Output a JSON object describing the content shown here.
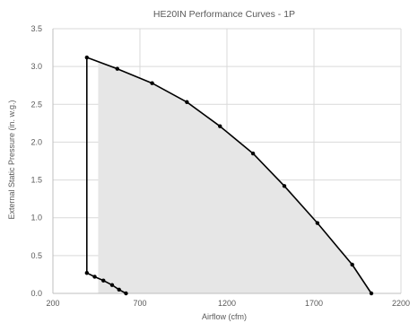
{
  "chart_data": {
    "type": "line",
    "title": "HE20IN Performance Curves - 1P",
    "xlabel": "Airflow (cfm)",
    "ylabel": "External Static Pressure (in. w.g.)",
    "xlim": [
      200,
      2200
    ],
    "ylim": [
      0,
      3.5
    ],
    "xticks": [
      200,
      700,
      1200,
      1700,
      2200
    ],
    "xtick_labels": [
      "200",
      "700",
      "1200",
      "1700",
      "2200"
    ],
    "yticks": [
      0,
      0.5,
      1.0,
      1.5,
      2.0,
      2.5,
      3.0,
      3.5
    ],
    "ytick_labels": [
      "0.0",
      "0.5",
      "1.0",
      "1.5",
      "2.0",
      "2.5",
      "3.0",
      "3.5"
    ],
    "grid": true,
    "legend": "none",
    "shaded_region": {
      "description_none": "",
      "polygon": [
        [
          460,
          0
        ],
        [
          460,
          3.05
        ],
        [
          570,
          2.97
        ],
        [
          770,
          2.78
        ],
        [
          970,
          2.53
        ],
        [
          1160,
          2.21
        ],
        [
          1350,
          1.85
        ],
        [
          1530,
          1.42
        ],
        [
          1720,
          0.93
        ],
        [
          1920,
          0.38
        ],
        [
          2030,
          0.0
        ]
      ],
      "color": "#e6e6e6"
    },
    "series": [
      {
        "name": "",
        "color": "#000000",
        "points": [
          [
            395,
            3.12
          ],
          [
            570,
            2.97
          ],
          [
            770,
            2.78
          ],
          [
            970,
            2.53
          ],
          [
            1160,
            2.21
          ],
          [
            1350,
            1.85
          ],
          [
            1530,
            1.42
          ],
          [
            1720,
            0.93
          ],
          [
            1920,
            0.38
          ],
          [
            2030,
            0.0
          ]
        ]
      },
      {
        "name": "",
        "color": "#000000",
        "points": [
          [
            395,
            0.27
          ],
          [
            440,
            0.22
          ],
          [
            490,
            0.17
          ],
          [
            540,
            0.11
          ],
          [
            580,
            0.05
          ],
          [
            620,
            0.0
          ]
        ]
      },
      {
        "name": "",
        "color": "#000000",
        "marker": "none",
        "points": [
          [
            395,
            0.27
          ],
          [
            395,
            3.12
          ]
        ]
      }
    ]
  }
}
